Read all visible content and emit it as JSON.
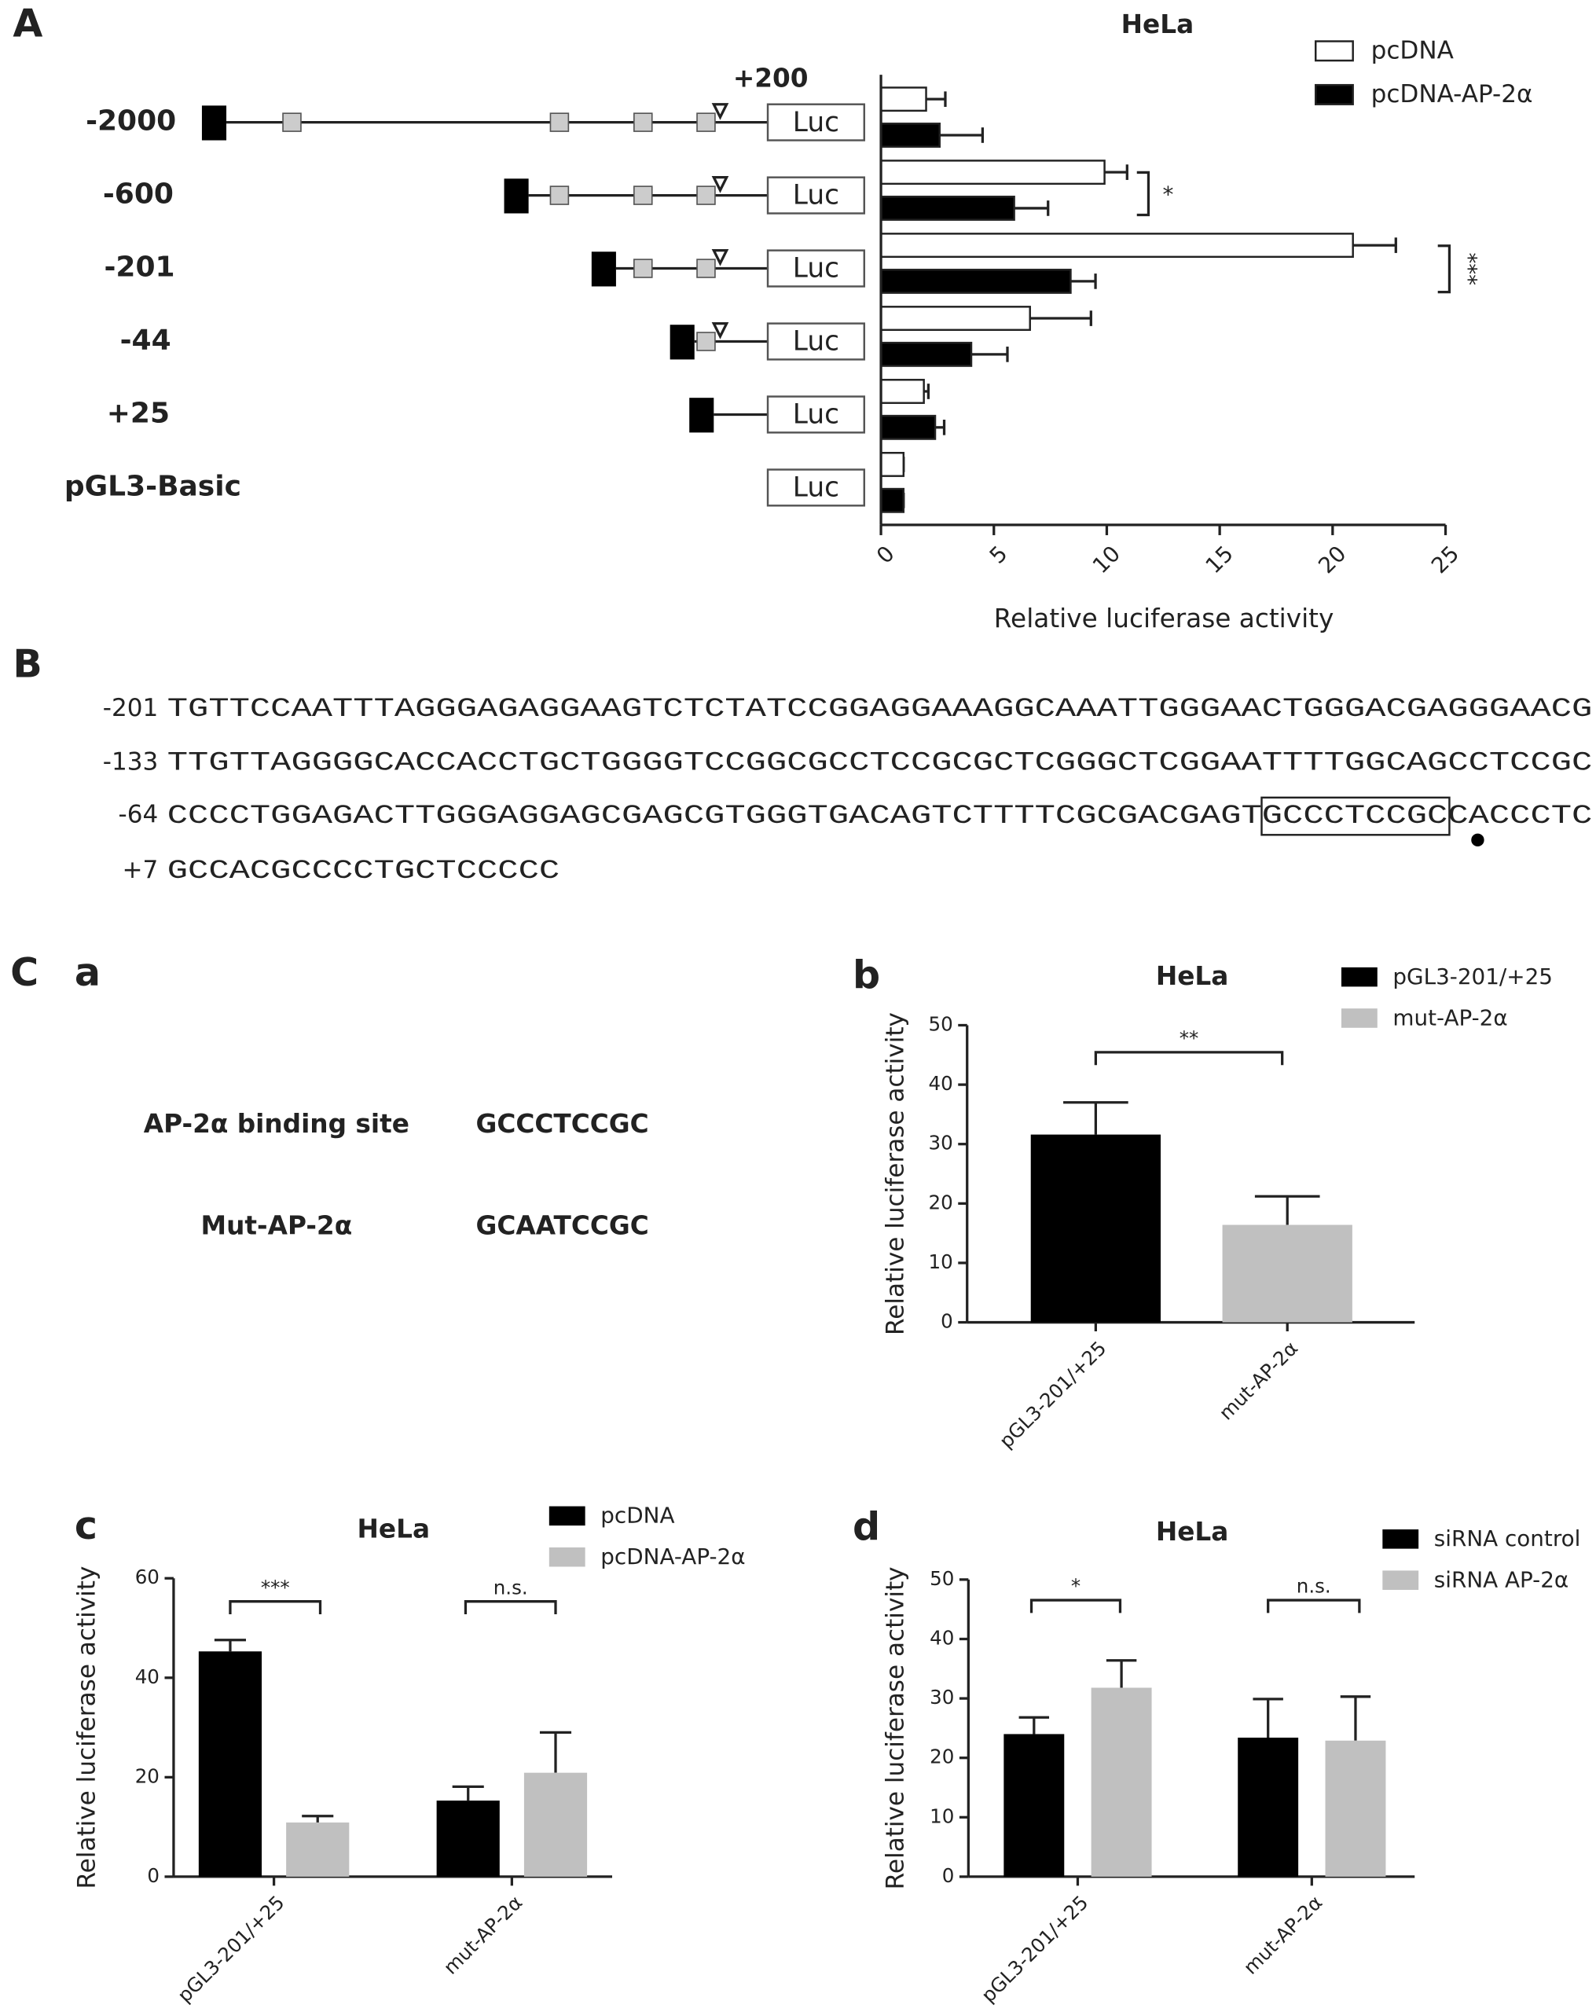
{
  "panel_labels": [
    "A",
    "B",
    "C",
    "a",
    "b",
    "c",
    "d"
  ],
  "constructs": {
    "start_label": "+200",
    "reporter": "Luc"
  },
  "sequence": {
    "lines": [
      {
        "position": "-201",
        "bases": "TGTTCCAATTTAGGGAGAGGAAGTCTCTATCCGGAGGAAAGGCAAATTGGGAACTGGGACGAGGGAACG"
      },
      {
        "position": "-133",
        "bases": "TTGTTAGGGGCACCACCTGCTGGGGTCCGGCGCCTCCGCGCTCGGGCTCGGAATTTTGGCAGCCTCCGC"
      },
      {
        "position": "-64",
        "bases": "CCCCTGGAGACTTGGGAGGAGCGAGCGTGGGTGACAGTCTTTTCGCGACGAGTGCCCTCCGCCACCCTC"
      },
      {
        "position": "+7",
        "bases": "GCCACGCCCCTGCTCCCCC"
      }
    ]
  },
  "binding_sites": {
    "rows": [
      {
        "label": "AP-2α binding site",
        "sequence": "GCCCTCCGC"
      },
      {
        "label": "Mut-AP-2α",
        "sequence": "GCAATCCGC"
      }
    ]
  },
  "chart_data": [
    {
      "type": "hbar",
      "title": "HeLa",
      "xlabel": "Relative luciferase activity",
      "categories": [
        "-2000",
        "-600",
        "-201",
        "-44",
        "+25",
        "pGL3-Basic"
      ],
      "series": [
        {
          "name": "pcDNA",
          "color": "#ffffff",
          "values": [
            2.0,
            9.9,
            20.9,
            6.6,
            1.9,
            1.0
          ],
          "errors": [
            0.85,
            1.0,
            1.9,
            2.7,
            0.2,
            0
          ]
        },
        {
          "name": "pcDNA-AP-2α",
          "color": "#000000",
          "values": [
            2.6,
            5.9,
            8.4,
            4.0,
            2.4,
            1.0
          ],
          "errors": [
            1.9,
            1.5,
            1.1,
            1.6,
            0.4,
            0
          ]
        }
      ],
      "xlim": [
        0,
        25
      ],
      "xticks": [
        0,
        5,
        10,
        15,
        20,
        25
      ],
      "annotations": [
        "*",
        "***"
      ]
    },
    {
      "type": "bar",
      "title": "HeLa",
      "ylabel": "Relative luciferase activity",
      "categories": [
        "pGL3-201/+25",
        "mut-AP-2α"
      ],
      "values": [
        31.6,
        16.4
      ],
      "errors": [
        5.4,
        4.8
      ],
      "colors": [
        "#000000",
        "#c0c0c0"
      ],
      "ylim": [
        0,
        50
      ],
      "yticks": [
        0,
        10,
        20,
        30,
        40,
        50
      ],
      "annotations": [
        "**"
      ]
    },
    {
      "type": "bar",
      "title": "HeLa",
      "ylabel": "Relative luciferase activity",
      "categories": [
        "pGL3-201/+25",
        "mut-AP-2α"
      ],
      "series": [
        {
          "name": "pcDNA",
          "color": "#000000",
          "values": [
            45.3,
            15.3
          ],
          "errors": [
            2.3,
            2.8
          ]
        },
        {
          "name": "pcDNA-AP-2α",
          "color": "#c0c0c0",
          "values": [
            10.9,
            20.9
          ],
          "errors": [
            1.3,
            8.1
          ]
        }
      ],
      "ylim": [
        0,
        60
      ],
      "yticks": [
        0,
        20,
        40,
        60
      ],
      "annotations": [
        "***",
        "n.s."
      ]
    },
    {
      "type": "bar",
      "title": "HeLa",
      "ylabel": "Relative luciferase activity",
      "categories": [
        "pGL3-201/+25",
        "mut-AP-2α"
      ],
      "series": [
        {
          "name": "siRNA control",
          "color": "#000000",
          "values": [
            24.0,
            23.4
          ],
          "errors": [
            2.8,
            6.5
          ]
        },
        {
          "name": "siRNA AP-2α",
          "color": "#c0c0c0",
          "values": [
            31.8,
            22.9
          ],
          "errors": [
            4.6,
            7.4
          ]
        }
      ],
      "ylim": [
        0,
        50
      ],
      "yticks": [
        0,
        10,
        20,
        30,
        40,
        50
      ],
      "annotations": [
        "*",
        "n.s."
      ]
    }
  ]
}
